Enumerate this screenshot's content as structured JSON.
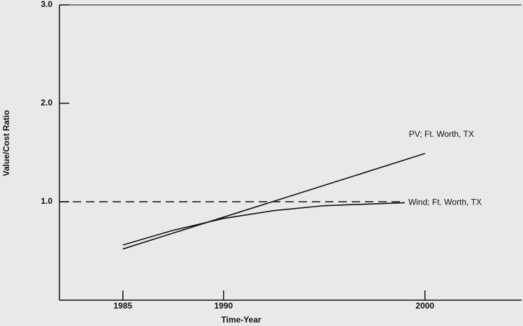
{
  "chart_data": {
    "type": "line",
    "xlabel": "Time-Year",
    "ylabel": "Value/Cost Ratio",
    "xlim": [
      1981.85,
      2004.8
    ],
    "ylim": [
      0,
      3
    ],
    "xticks": [
      1985,
      1990,
      2000
    ],
    "yticks": [
      {
        "value": 1,
        "label": "1.0"
      },
      {
        "value": 2,
        "label": "2.0"
      },
      {
        "value": 3,
        "label": "3.0"
      }
    ],
    "reference_line": 1,
    "series": [
      {
        "name": "PV; Ft. Worth, TX",
        "color": "#111111",
        "x": [
          1985,
          2000
        ],
        "values": [
          0.52,
          1.49
        ]
      },
      {
        "name": "Wind; Ft. Worth, TX",
        "color": "#111111",
        "x": [
          1985,
          1987.5,
          1990,
          1992.5,
          1995,
          1999
        ],
        "values": [
          0.56,
          0.71,
          0.83,
          0.91,
          0.96,
          0.99
        ]
      }
    ]
  }
}
